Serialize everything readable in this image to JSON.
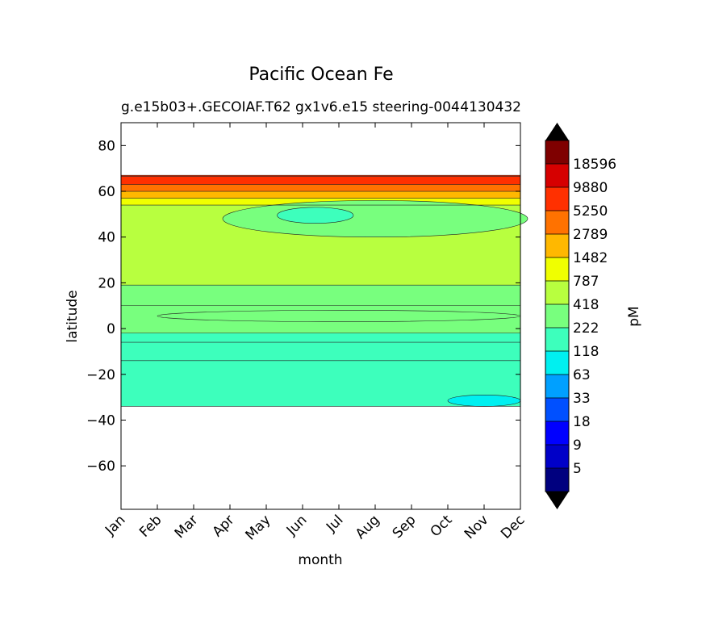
{
  "chart_data": {
    "type": "heatmap",
    "title": "Pacific Ocean Fe",
    "subtitle": "g.e15b03+.GECOIAF.T62 gx1v6.e15 steering-004",
    "subtitle_right": "4130432",
    "xlabel": "month",
    "ylabel": "latitude",
    "x_categories": [
      "Jan",
      "Feb",
      "Mar",
      "Apr",
      "May",
      "Jun",
      "Jul",
      "Aug",
      "Sep",
      "Oct",
      "Nov",
      "Dec"
    ],
    "ylim": [
      -79,
      90
    ],
    "y_ticks": [
      80,
      60,
      40,
      20,
      0,
      -20,
      -40,
      -60
    ],
    "y_tick_labels": [
      "80",
      "60",
      "40",
      "20",
      "0",
      "−20",
      "−40",
      "−60"
    ],
    "colorbar": {
      "label": "pM",
      "tick_labels": [
        "5",
        "9",
        "18",
        "33",
        "63",
        "118",
        "222",
        "418",
        "787",
        "1482",
        "2789",
        "5250",
        "9880",
        "18596"
      ],
      "colors": [
        "#00007f",
        "#0000c8",
        "#0000ff",
        "#0050ff",
        "#00a0ff",
        "#00f0f0",
        "#3dffbc",
        "#78ff7e",
        "#b8ff3f",
        "#f0ff00",
        "#ffb800",
        "#ff7200",
        "#ff3000",
        "#d60000",
        "#7f0000"
      ],
      "extend": "both",
      "under_color": "#000000",
      "over_color": "#000000"
    },
    "bands": [
      {
        "lat": [
          66.5,
          67
        ],
        "level": 12
      },
      {
        "lat": [
          63,
          66.5
        ],
        "level": 12
      },
      {
        "lat": [
          60,
          63
        ],
        "level": 11
      },
      {
        "lat": [
          57,
          60
        ],
        "level": 10
      },
      {
        "lat": [
          54,
          57
        ],
        "level": 9
      },
      {
        "lat": [
          19,
          54
        ],
        "level": 8
      },
      {
        "lat": [
          10,
          19
        ],
        "level": 7
      },
      {
        "lat": [
          -2,
          10
        ],
        "level": 7
      },
      {
        "lat": [
          -6,
          -2
        ],
        "level": 6
      },
      {
        "lat": [
          -14,
          -6
        ],
        "level": 6
      },
      {
        "lat": [
          -34,
          -14
        ],
        "level": 6
      }
    ],
    "patches": [
      {
        "name": "north-pacific-green-patch",
        "level": 7,
        "months": [
          2.8,
          11.2
        ],
        "lat": [
          40,
          56
        ]
      },
      {
        "name": "north-pacific-cyan-patch",
        "level": 6,
        "months": [
          4.3,
          6.4
        ],
        "lat": [
          46,
          53
        ]
      },
      {
        "name": "equatorial-green-strip",
        "level": 7,
        "months": [
          1,
          11
        ],
        "lat": [
          3,
          8
        ]
      },
      {
        "name": "south-pacific-aqua-patch",
        "level": 5,
        "months": [
          9,
          11
        ],
        "lat": [
          -34,
          -29
        ]
      }
    ],
    "data_extent_lat": [
      -34,
      67
    ],
    "grid": false
  }
}
